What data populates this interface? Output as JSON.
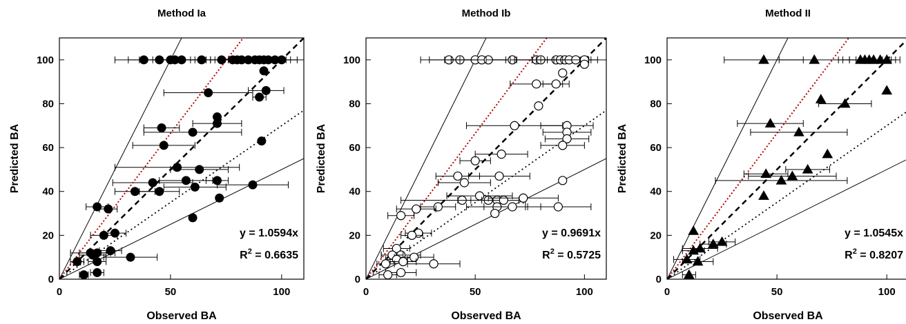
{
  "chart_data": [
    {
      "type": "scatter",
      "title": "Method Ia",
      "xlabel": "Observed BA",
      "ylabel": "Predicted BA",
      "xlim": [
        0,
        110
      ],
      "ylim": [
        0,
        110
      ],
      "xticks": [
        "0",
        "50",
        "100"
      ],
      "yticks": [
        "0",
        "20",
        "40",
        "60",
        "80",
        "100"
      ],
      "grid": false,
      "marker": "filled-circle",
      "equation": "y = 1.0594x",
      "r2_label": "R",
      "r2_sup": "2",
      "r2_value": " = 0.6635",
      "fit_slope": 1.0594,
      "reference_lines": [
        {
          "slope": 2.0,
          "style": "solid"
        },
        {
          "slope": 1.33,
          "style": "dotted-red"
        },
        {
          "slope": 1.0,
          "style": "dashed"
        },
        {
          "slope": 0.7,
          "style": "dotted"
        },
        {
          "slope": 0.5,
          "style": "solid"
        }
      ],
      "points": [
        {
          "x": 38,
          "y": 100,
          "xerr": 13
        },
        {
          "x": 45,
          "y": 100,
          "xerr": 14
        },
        {
          "x": 50,
          "y": 100,
          "xerr": 14
        },
        {
          "x": 52,
          "y": 100,
          "xerr": 14
        },
        {
          "x": 55,
          "y": 100,
          "xerr": 13
        },
        {
          "x": 64,
          "y": 100,
          "xerr": 12
        },
        {
          "x": 73,
          "y": 100,
          "xerr": 12
        },
        {
          "x": 78,
          "y": 100,
          "xerr": 12
        },
        {
          "x": 80,
          "y": 100,
          "xerr": 12
        },
        {
          "x": 82,
          "y": 100,
          "xerr": 12
        },
        {
          "x": 85,
          "y": 100,
          "xerr": 11
        },
        {
          "x": 88,
          "y": 100,
          "xerr": 11
        },
        {
          "x": 90,
          "y": 100,
          "xerr": 11
        },
        {
          "x": 92,
          "y": 100,
          "xerr": 10
        },
        {
          "x": 94,
          "y": 100,
          "xerr": 10
        },
        {
          "x": 97,
          "y": 100,
          "xerr": 10
        },
        {
          "x": 100,
          "y": 100,
          "xerr": 10
        },
        {
          "x": 92,
          "y": 95,
          "xerr": 0
        },
        {
          "x": 93,
          "y": 86,
          "xerr": 8
        },
        {
          "x": 67,
          "y": 85,
          "xerr": 20
        },
        {
          "x": 90,
          "y": 83,
          "xerr": 3
        },
        {
          "x": 71,
          "y": 74,
          "xerr": 0
        },
        {
          "x": 71,
          "y": 71,
          "xerr": 11
        },
        {
          "x": 46,
          "y": 69,
          "xerr": 8
        },
        {
          "x": 60,
          "y": 67,
          "xerr": 22
        },
        {
          "x": 47,
          "y": 61,
          "xerr": 14
        },
        {
          "x": 91,
          "y": 63,
          "xerr": 0
        },
        {
          "x": 53,
          "y": 51,
          "xerr": 28
        },
        {
          "x": 63,
          "y": 50,
          "xerr": 13
        },
        {
          "x": 42,
          "y": 44,
          "xerr": 18
        },
        {
          "x": 57,
          "y": 45,
          "xerr": 12
        },
        {
          "x": 71,
          "y": 45,
          "xerr": 5
        },
        {
          "x": 61,
          "y": 42,
          "xerr": 14
        },
        {
          "x": 87,
          "y": 43,
          "xerr": 16
        },
        {
          "x": 45,
          "y": 40,
          "xerr": 9
        },
        {
          "x": 34,
          "y": 40,
          "xerr": 9
        },
        {
          "x": 72,
          "y": 37,
          "xerr": 0
        },
        {
          "x": 17,
          "y": 33,
          "xerr": 5
        },
        {
          "x": 22,
          "y": 32,
          "xerr": 4
        },
        {
          "x": 60,
          "y": 28,
          "xerr": 0
        },
        {
          "x": 25,
          "y": 21,
          "xerr": 5
        },
        {
          "x": 20,
          "y": 20,
          "xerr": 6
        },
        {
          "x": 23,
          "y": 13,
          "xerr": 5
        },
        {
          "x": 14,
          "y": 12,
          "xerr": 9
        },
        {
          "x": 15,
          "y": 11,
          "xerr": 6
        },
        {
          "x": 17,
          "y": 12,
          "xerr": 8
        },
        {
          "x": 32,
          "y": 10,
          "xerr": 12
        },
        {
          "x": 17,
          "y": 8,
          "xerr": 4
        },
        {
          "x": 8,
          "y": 8,
          "xerr": 3
        },
        {
          "x": 17,
          "y": 3,
          "xerr": 3
        },
        {
          "x": 11,
          "y": 2,
          "xerr": 2
        }
      ]
    },
    {
      "type": "scatter",
      "title": "Method Ib",
      "xlabel": "Observed BA",
      "ylabel": "Predicted BA",
      "xlim": [
        0,
        110
      ],
      "ylim": [
        0,
        110
      ],
      "xticks": [
        "0",
        "50",
        "100"
      ],
      "yticks": [
        "0",
        "20",
        "40",
        "60",
        "80",
        "100"
      ],
      "grid": false,
      "marker": "open-circle",
      "equation": "y = 0.9691x",
      "r2_label": "R",
      "r2_sup": "2",
      "r2_value": " = 0.5725",
      "fit_slope": 0.9691,
      "reference_lines": [
        {
          "slope": 2.0,
          "style": "solid"
        },
        {
          "slope": 1.33,
          "style": "dotted-red"
        },
        {
          "slope": 1.0,
          "style": "dashed"
        },
        {
          "slope": 0.7,
          "style": "dotted"
        },
        {
          "slope": 0.5,
          "style": "solid"
        }
      ],
      "points": [
        {
          "x": 38,
          "y": 100,
          "xerr": 13
        },
        {
          "x": 43,
          "y": 100,
          "xerr": 14
        },
        {
          "x": 50,
          "y": 100,
          "xerr": 14
        },
        {
          "x": 53,
          "y": 100,
          "xerr": 14
        },
        {
          "x": 56,
          "y": 100,
          "xerr": 13
        },
        {
          "x": 67,
          "y": 100,
          "xerr": 12
        },
        {
          "x": 78,
          "y": 100,
          "xerr": 12
        },
        {
          "x": 80,
          "y": 100,
          "xerr": 12
        },
        {
          "x": 87,
          "y": 100,
          "xerr": 11
        },
        {
          "x": 89,
          "y": 100,
          "xerr": 11
        },
        {
          "x": 91,
          "y": 100,
          "xerr": 11
        },
        {
          "x": 93,
          "y": 100,
          "xerr": 10
        },
        {
          "x": 96,
          "y": 100,
          "xerr": 10
        },
        {
          "x": 100,
          "y": 100,
          "xerr": 10
        },
        {
          "x": 100,
          "y": 98,
          "xerr": 0
        },
        {
          "x": 90,
          "y": 94,
          "xerr": 0
        },
        {
          "x": 78,
          "y": 89,
          "xerr": 12
        },
        {
          "x": 87,
          "y": 89,
          "xerr": 6
        },
        {
          "x": 79,
          "y": 79,
          "xerr": 0
        },
        {
          "x": 68,
          "y": 70,
          "xerr": 22
        },
        {
          "x": 92,
          "y": 70,
          "xerr": 12
        },
        {
          "x": 92,
          "y": 67,
          "xerr": 11
        },
        {
          "x": 92,
          "y": 64,
          "xerr": 10
        },
        {
          "x": 90,
          "y": 61,
          "xerr": 10
        },
        {
          "x": 50,
          "y": 54,
          "xerr": 7
        },
        {
          "x": 62,
          "y": 57,
          "xerr": 12
        },
        {
          "x": 42,
          "y": 47,
          "xerr": 10
        },
        {
          "x": 61,
          "y": 47,
          "xerr": 14
        },
        {
          "x": 45,
          "y": 44,
          "xerr": 12
        },
        {
          "x": 33,
          "y": 33,
          "xerr": 8
        },
        {
          "x": 44,
          "y": 36,
          "xerr": 28
        },
        {
          "x": 52,
          "y": 38,
          "xerr": 15
        },
        {
          "x": 56,
          "y": 36,
          "xerr": 14
        },
        {
          "x": 60,
          "y": 36,
          "xerr": 12
        },
        {
          "x": 63,
          "y": 36,
          "xerr": 10
        },
        {
          "x": 72,
          "y": 37,
          "xerr": 16
        },
        {
          "x": 90,
          "y": 45,
          "xerr": 0
        },
        {
          "x": 60,
          "y": 33,
          "xerr": 14
        },
        {
          "x": 67,
          "y": 33,
          "xerr": 13
        },
        {
          "x": 88,
          "y": 33,
          "xerr": 15
        },
        {
          "x": 59,
          "y": 30,
          "xerr": 0
        },
        {
          "x": 23,
          "y": 32,
          "xerr": 9
        },
        {
          "x": 16,
          "y": 29,
          "xerr": 6
        },
        {
          "x": 24,
          "y": 21,
          "xerr": 6
        },
        {
          "x": 21,
          "y": 20,
          "xerr": 5
        },
        {
          "x": 14,
          "y": 14,
          "xerr": 6
        },
        {
          "x": 16,
          "y": 11,
          "xerr": 9
        },
        {
          "x": 12,
          "y": 11,
          "xerr": 5
        },
        {
          "x": 22,
          "y": 10,
          "xerr": 9
        },
        {
          "x": 14,
          "y": 9,
          "xerr": 5
        },
        {
          "x": 9,
          "y": 7,
          "xerr": 4
        },
        {
          "x": 17,
          "y": 8,
          "xerr": 6
        },
        {
          "x": 31,
          "y": 7,
          "xerr": 12
        },
        {
          "x": 16,
          "y": 3,
          "xerr": 7
        },
        {
          "x": 10,
          "y": 2,
          "xerr": 4
        }
      ]
    },
    {
      "type": "scatter",
      "title": "Method II",
      "xlabel": "Observed BA",
      "ylabel": "Predicted BA",
      "xlim": [
        0,
        110
      ],
      "ylim": [
        0,
        110
      ],
      "xticks": [
        "0",
        "50",
        "100"
      ],
      "yticks": [
        "0",
        "20",
        "40",
        "60",
        "80",
        "100"
      ],
      "grid": false,
      "marker": "filled-triangle",
      "equation": "y = 1.0545x",
      "r2_label": "R",
      "r2_sup": "2",
      "r2_value": " = 0.8207",
      "fit_slope": 1.0545,
      "reference_lines": [
        {
          "slope": 2.0,
          "style": "solid"
        },
        {
          "slope": 1.33,
          "style": "dotted-red"
        },
        {
          "slope": 1.0,
          "style": "dashed"
        },
        {
          "slope": 0.7,
          "style": "dotted"
        },
        {
          "slope": 0.5,
          "style": "solid"
        }
      ],
      "points": [
        {
          "x": 44,
          "y": 100,
          "xerr": 18
        },
        {
          "x": 67,
          "y": 100,
          "xerr": 16
        },
        {
          "x": 88,
          "y": 100,
          "xerr": 10
        },
        {
          "x": 90,
          "y": 100,
          "xerr": 10
        },
        {
          "x": 92,
          "y": 100,
          "xerr": 9
        },
        {
          "x": 94,
          "y": 100,
          "xerr": 8
        },
        {
          "x": 97,
          "y": 100,
          "xerr": 7
        },
        {
          "x": 100,
          "y": 100,
          "xerr": 6
        },
        {
          "x": 100,
          "y": 86,
          "xerr": 0
        },
        {
          "x": 70,
          "y": 82,
          "xerr": 0
        },
        {
          "x": 81,
          "y": 80,
          "xerr": 12
        },
        {
          "x": 47,
          "y": 71,
          "xerr": 15
        },
        {
          "x": 60,
          "y": 67,
          "xerr": 22
        },
        {
          "x": 73,
          "y": 57,
          "xerr": 0
        },
        {
          "x": 64,
          "y": 50,
          "xerr": 10
        },
        {
          "x": 45,
          "y": 48,
          "xerr": 10
        },
        {
          "x": 57,
          "y": 47,
          "xerr": 20
        },
        {
          "x": 52,
          "y": 45,
          "xerr": 30
        },
        {
          "x": 44,
          "y": 38,
          "xerr": 0
        },
        {
          "x": 25,
          "y": 17,
          "xerr": 6
        },
        {
          "x": 21,
          "y": 16,
          "xerr": 6
        },
        {
          "x": 12,
          "y": 22,
          "xerr": 0
        },
        {
          "x": 15,
          "y": 14,
          "xerr": 8
        },
        {
          "x": 12,
          "y": 13,
          "xerr": 5
        },
        {
          "x": 9,
          "y": 9,
          "xerr": 6
        },
        {
          "x": 14,
          "y": 8,
          "xerr": 7
        },
        {
          "x": 10,
          "y": 2,
          "xerr": 3
        }
      ]
    }
  ]
}
